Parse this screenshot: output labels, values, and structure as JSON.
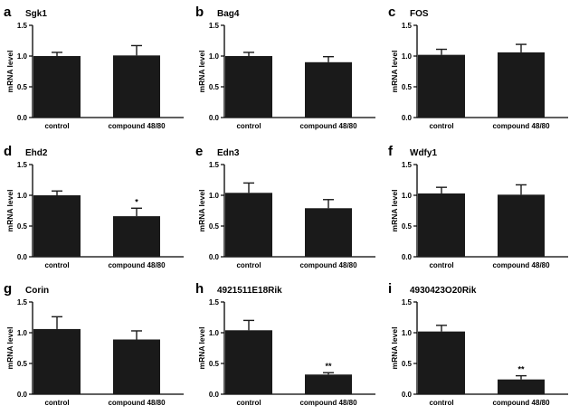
{
  "chart_data": [
    {
      "panel": "a",
      "type": "bar",
      "title": "Sgk1",
      "ylabel": "mRNA level",
      "categories": [
        "control",
        "compound 48/80"
      ],
      "values": [
        1.0,
        1.01
      ],
      "errors": [
        0.06,
        0.16
      ],
      "significance": [
        "",
        ""
      ],
      "ylim": [
        0,
        1.5
      ],
      "yticks": [
        "0.0",
        "0.5",
        "1.0",
        "1.5"
      ]
    },
    {
      "panel": "b",
      "type": "bar",
      "title": "Bag4",
      "ylabel": "mRNA level",
      "categories": [
        "control",
        "compound 48/80"
      ],
      "values": [
        1.0,
        0.9
      ],
      "errors": [
        0.06,
        0.09
      ],
      "significance": [
        "",
        ""
      ],
      "ylim": [
        0,
        1.5
      ],
      "yticks": [
        "0.0",
        "0.5",
        "1.0",
        "1.5"
      ]
    },
    {
      "panel": "c",
      "type": "bar",
      "title": "FOS",
      "ylabel": "mRNA level",
      "categories": [
        "control",
        "compound 48/80"
      ],
      "values": [
        1.02,
        1.06
      ],
      "errors": [
        0.09,
        0.13
      ],
      "significance": [
        "",
        ""
      ],
      "ylim": [
        0,
        1.5
      ],
      "yticks": [
        "0.0",
        "0.5",
        "1.0",
        "1.5"
      ]
    },
    {
      "panel": "d",
      "type": "bar",
      "title": "Ehd2",
      "ylabel": "mRNA level",
      "categories": [
        "control",
        "compound 48/80"
      ],
      "values": [
        1.0,
        0.66
      ],
      "errors": [
        0.07,
        0.13
      ],
      "significance": [
        "",
        "*"
      ],
      "ylim": [
        0,
        1.5
      ],
      "yticks": [
        "0.0",
        "0.5",
        "1.0",
        "1.5"
      ]
    },
    {
      "panel": "e",
      "type": "bar",
      "title": "Edn3",
      "ylabel": "mRNA level",
      "categories": [
        "control",
        "compound 48/80"
      ],
      "values": [
        1.04,
        0.79
      ],
      "errors": [
        0.16,
        0.14
      ],
      "significance": [
        "",
        ""
      ],
      "ylim": [
        0,
        1.5
      ],
      "yticks": [
        "0.0",
        "0.5",
        "1.0",
        "1.5"
      ]
    },
    {
      "panel": "f",
      "type": "bar",
      "title": "Wdfy1",
      "ylabel": "mRNA level",
      "categories": [
        "control",
        "compound 48/80"
      ],
      "values": [
        1.03,
        1.01
      ],
      "errors": [
        0.1,
        0.16
      ],
      "significance": [
        "",
        ""
      ],
      "ylim": [
        0,
        1.5
      ],
      "yticks": [
        "0.0",
        "0.5",
        "1.0",
        "1.5"
      ]
    },
    {
      "panel": "g",
      "type": "bar",
      "title": "Corin",
      "ylabel": "mRNA level",
      "categories": [
        "control",
        "compound 48/80"
      ],
      "values": [
        1.06,
        0.89
      ],
      "errors": [
        0.2,
        0.14
      ],
      "significance": [
        "",
        ""
      ],
      "ylim": [
        0,
        1.5
      ],
      "yticks": [
        "0.0",
        "0.5",
        "1.0",
        "1.5"
      ]
    },
    {
      "panel": "h",
      "type": "bar",
      "title": "4921511E18Rik",
      "ylabel": "mRNA level",
      "categories": [
        "control",
        "compound 48/80"
      ],
      "values": [
        1.04,
        0.32
      ],
      "errors": [
        0.16,
        0.03
      ],
      "significance": [
        "",
        "**"
      ],
      "ylim": [
        0,
        1.5
      ],
      "yticks": [
        "0.0",
        "0.5",
        "1.0",
        "1.5"
      ]
    },
    {
      "panel": "i",
      "type": "bar",
      "title": "4930423O20Rik",
      "ylabel": "mRNA level",
      "categories": [
        "control",
        "compound 48/80"
      ],
      "values": [
        1.02,
        0.24
      ],
      "errors": [
        0.1,
        0.06
      ],
      "significance": [
        "",
        "**"
      ],
      "ylim": [
        0,
        1.5
      ],
      "yticks": [
        "0.0",
        "0.5",
        "1.0",
        "1.5"
      ]
    }
  ]
}
